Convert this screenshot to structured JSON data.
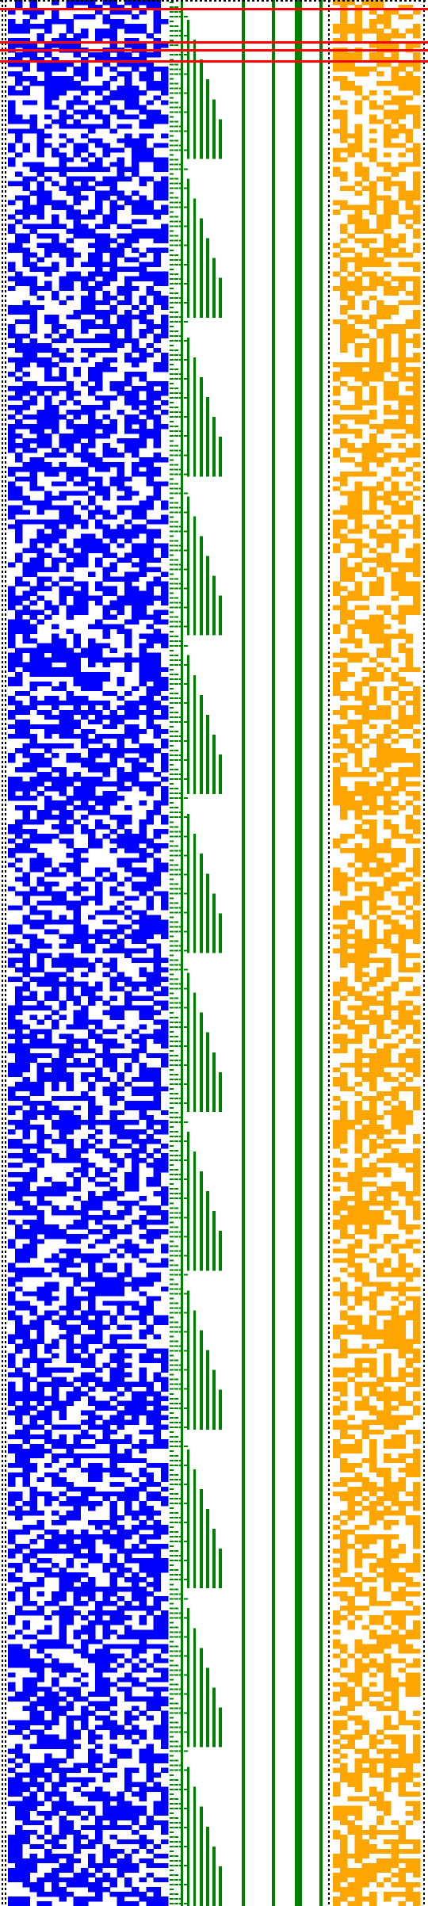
{
  "figure": {
    "kind": "binary pixel-grid visualization",
    "grid": {
      "rows": 400,
      "blue_columns": 22,
      "orange_columns": 12
    },
    "colors": {
      "background": "#ffffff",
      "blue_cells": "#0000ff",
      "green_lines": "#008000",
      "orange_cells": "#ffa500",
      "red_lines": "#ff0000",
      "dotted_border": "#000000"
    },
    "regions": [
      {
        "id": "blue-bit-matrix",
        "color": "blue_cells",
        "density": 0.55
      },
      {
        "id": "green-staircase-lines",
        "color": "green_lines"
      },
      {
        "id": "orange-bit-matrix",
        "color": "orange_cells",
        "density": 0.5
      },
      {
        "id": "red-horizontal-lines",
        "color": "red_lines"
      },
      {
        "id": "dotted-left-border",
        "color": "dotted_border"
      },
      {
        "id": "dotted-right-border",
        "color": "dotted_border"
      }
    ]
  }
}
